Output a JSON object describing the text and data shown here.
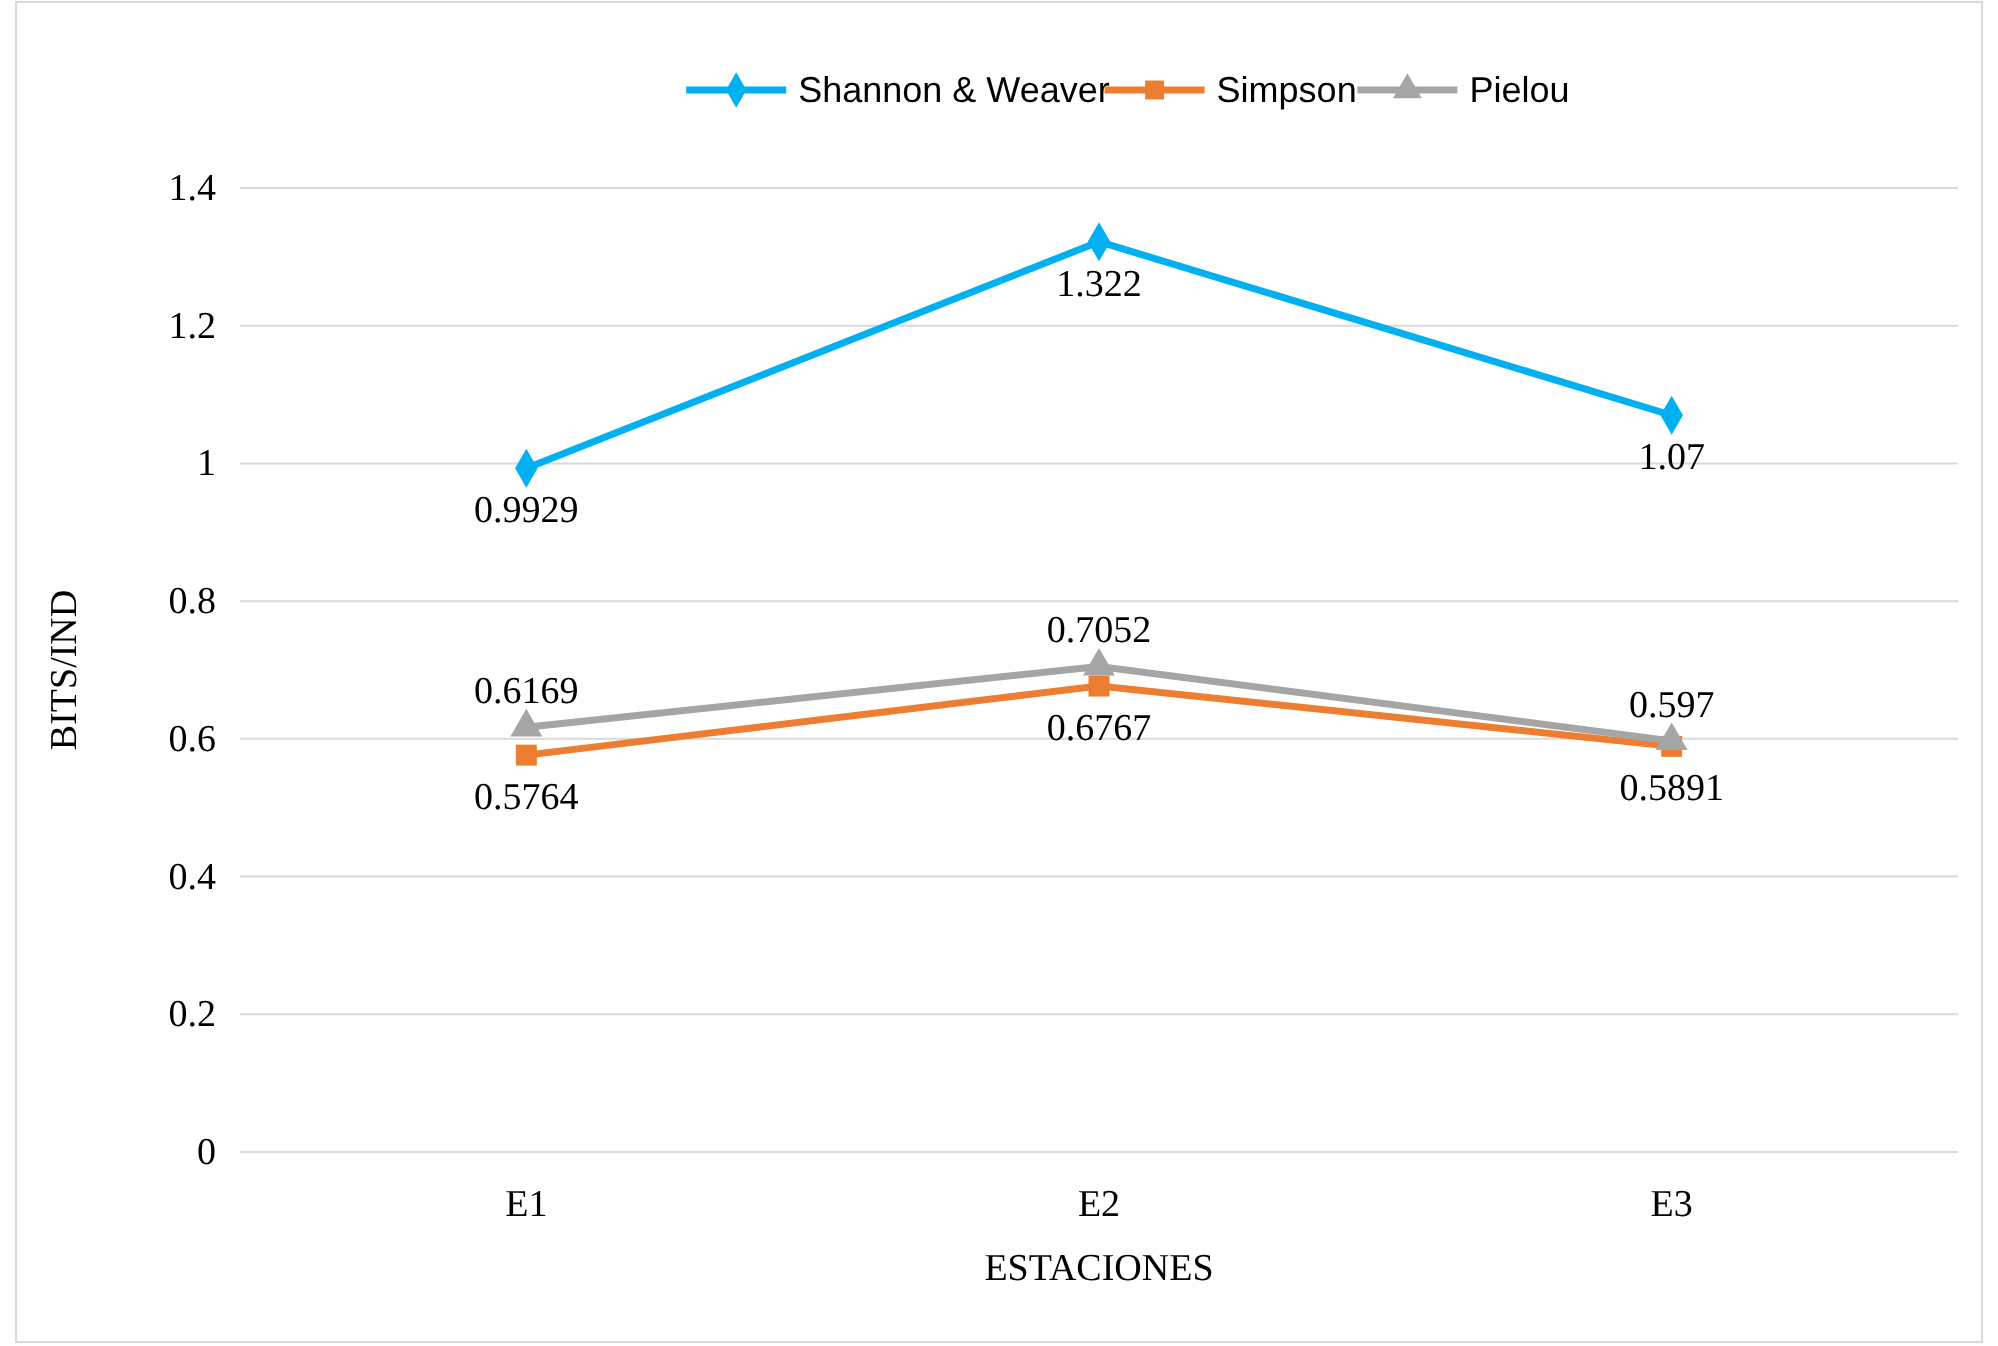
{
  "chart_data": {
    "type": "line",
    "xlabel": "ESTACIONES",
    "ylabel": "BITS/IND",
    "categories": [
      "E1",
      "E2",
      "E3"
    ],
    "series": [
      {
        "name": "Shannon & Weaver",
        "color": "#00b0f0",
        "marker": "diamond",
        "values": [
          0.9929,
          1.322,
          1.07
        ]
      },
      {
        "name": "Simpson",
        "color": "#ed7d31",
        "marker": "square",
        "values": [
          0.5764,
          0.6767,
          0.5891
        ]
      },
      {
        "name": "Pielou",
        "color": "#a5a5a5",
        "marker": "triangle",
        "values": [
          0.6169,
          0.7052,
          0.597
        ]
      }
    ],
    "ylim": [
      0,
      1.4
    ],
    "yticks": [
      0,
      0.2,
      0.4,
      0.6,
      0.8,
      1,
      1.2,
      1.4
    ],
    "grid": "y",
    "legend": "top",
    "data_labels": true
  }
}
